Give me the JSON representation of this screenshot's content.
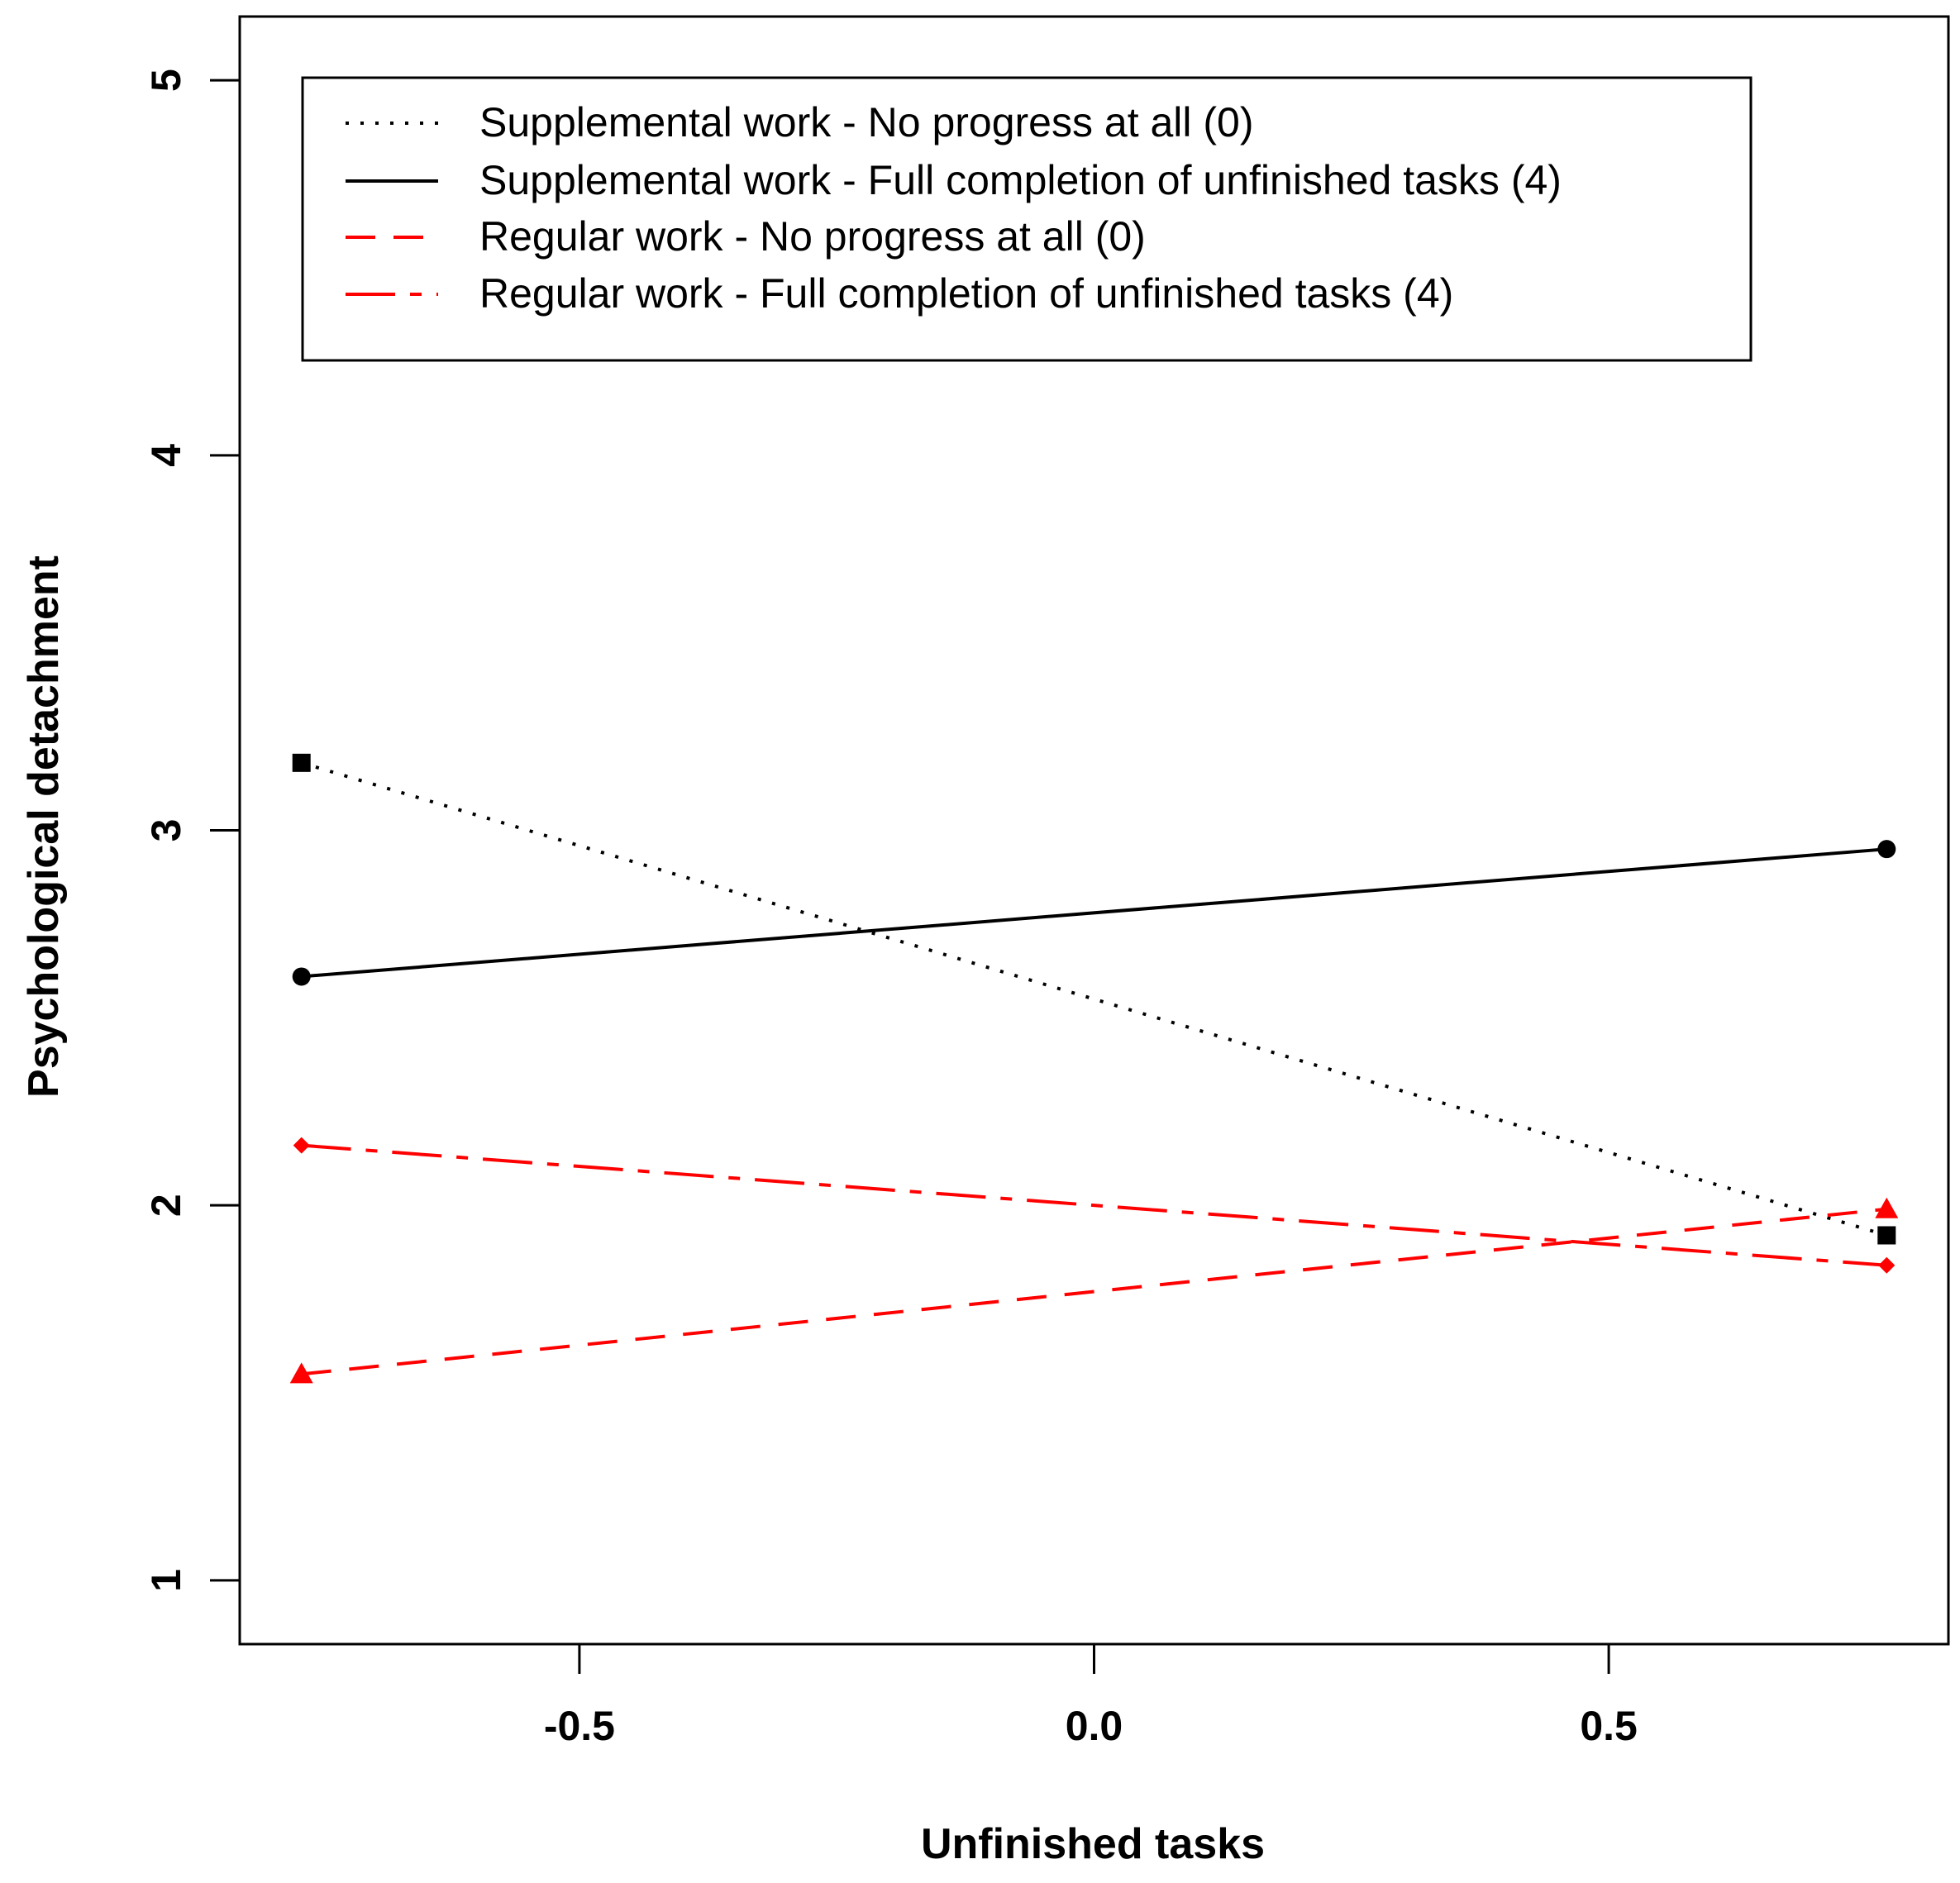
{
  "chart_data": {
    "type": "line",
    "title": "",
    "xlabel": "Unfinished tasks",
    "ylabel": "Psychological detachment",
    "xlim": [
      -0.83,
      0.83
    ],
    "ylim": [
      0.83,
      5.17
    ],
    "xticks": [
      -0.5,
      0.0,
      0.5
    ],
    "xtick_labels": [
      "-0.5",
      "0.0",
      "0.5"
    ],
    "yticks": [
      1,
      2,
      3,
      4,
      5
    ],
    "ytick_labels": [
      "1",
      "2",
      "3",
      "4",
      "5"
    ],
    "grid": false,
    "legend_position": "top",
    "x": [
      -0.77,
      0.77
    ],
    "series": [
      {
        "name": "Supplemental work - No progress at all (0)",
        "values": [
          3.18,
          1.92
        ],
        "color": "#000000",
        "line_style": "dotted",
        "marker": "square"
      },
      {
        "name": "Supplemental work - Full completion of unfinished tasks (4)",
        "values": [
          2.61,
          2.95
        ],
        "color": "#000000",
        "line_style": "solid",
        "marker": "circle"
      },
      {
        "name": "Regular work - No progress at all (0)",
        "values": [
          1.55,
          1.99
        ],
        "color": "#ff0000",
        "line_style": "dashed",
        "marker": "triangle"
      },
      {
        "name": "Regular work - Full completion of unfinished tasks (4)",
        "values": [
          2.16,
          1.84
        ],
        "color": "#ff0000",
        "line_style": "longdash",
        "marker": "diamond"
      }
    ]
  }
}
